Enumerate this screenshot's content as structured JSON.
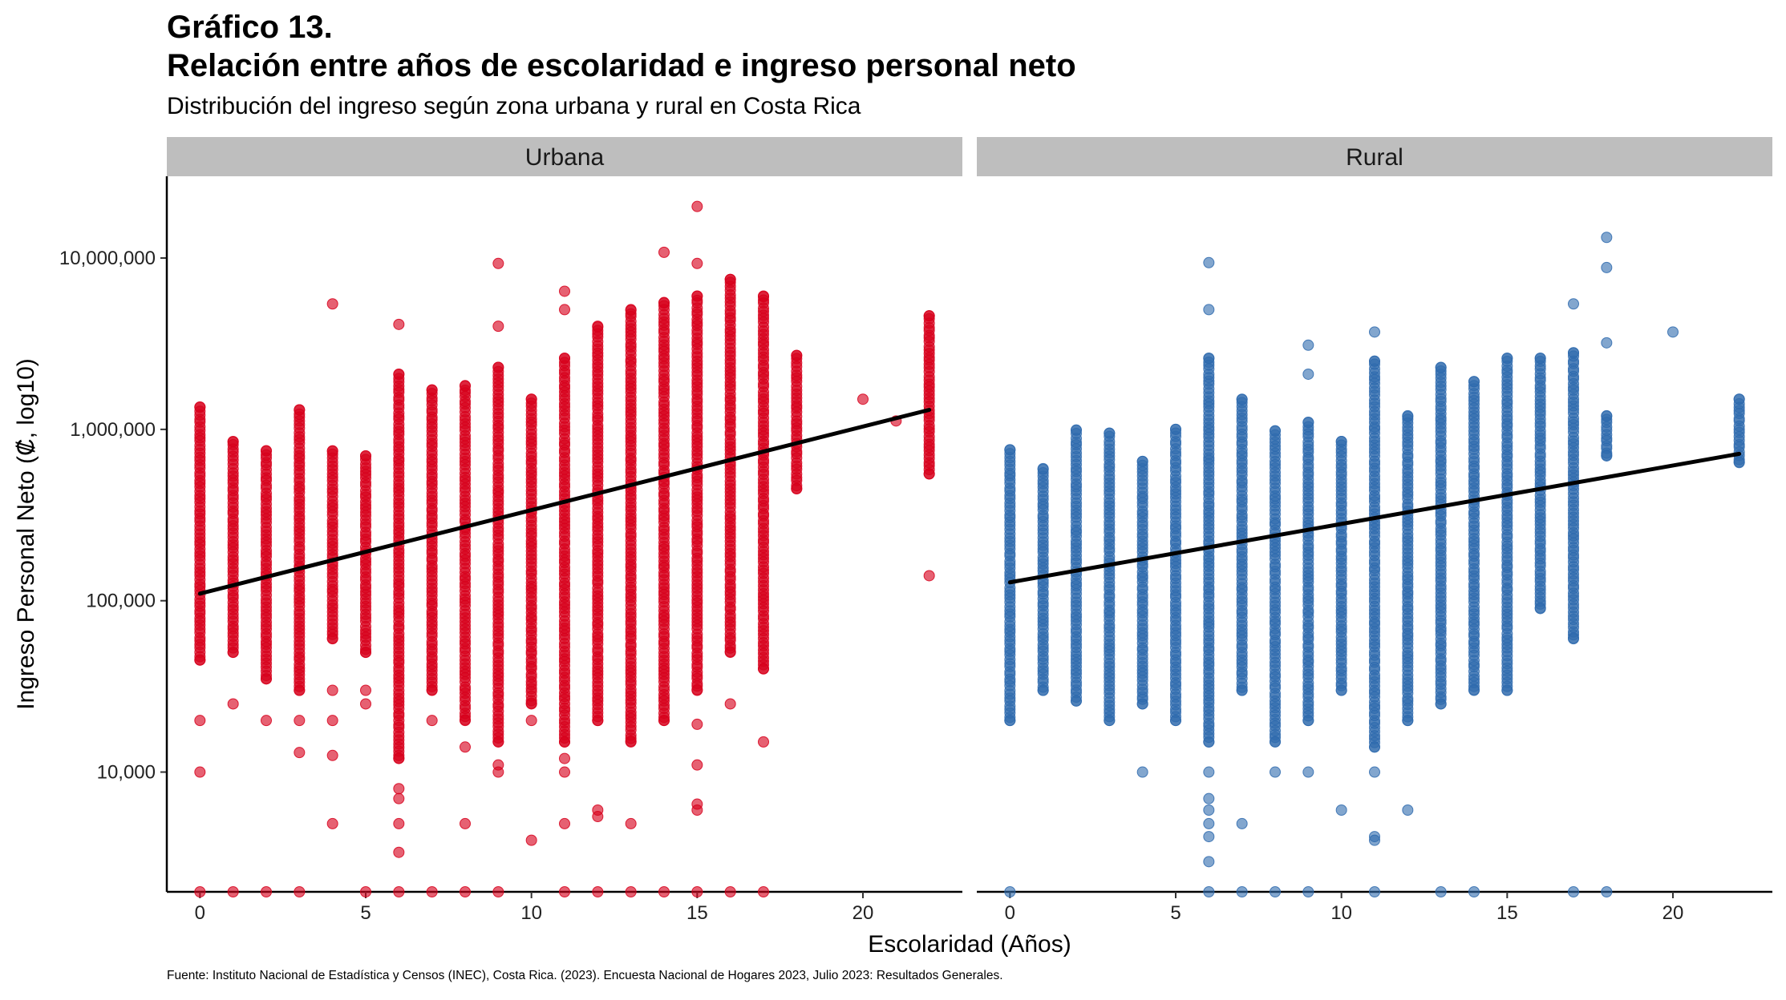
{
  "title_line1": "Gráfico 13.",
  "title_line2": "Relación entre años de escolaridad e ingreso personal neto",
  "subtitle": "Distribución del ingreso según zona urbana y rural en Costa Rica",
  "caption": "Fuente: Instituto Nacional de Estadística y Censos (INEC), Costa Rica. (2023). Encuesta Nacional de Hogares 2023, Julio 2023: Resultados Generales.",
  "colors": {
    "urbana": "#D7001C",
    "rural": "#2E6AAE",
    "strip": "#BEBEBE",
    "fit_line": "#000000"
  },
  "chart_data": {
    "type": "scatter",
    "title": "Relación entre años de escolaridad e ingreso personal neto",
    "subtitle": "Distribución del ingreso según zona urbana y rural en Costa Rica",
    "xlabel": "Escolaridad (Años)",
    "ylabel": "Ingreso Personal Neto (₡, log10)",
    "y_scale": "log10",
    "ylim": [
      2000,
      30000000
    ],
    "xlim": [
      -1,
      23
    ],
    "x_ticks": [
      0,
      5,
      10,
      15,
      20
    ],
    "x_tick_labels": [
      "0",
      "5",
      "10",
      "15",
      "20"
    ],
    "y_ticks": [
      10000,
      100000,
      1000000,
      10000000
    ],
    "y_tick_labels": [
      "10,000",
      "100,000",
      "1,000,000",
      "10,000,000"
    ],
    "grid": false,
    "legend": "none",
    "panels": [
      {
        "name": "Urbana",
        "trend_line": {
          "x": [
            0,
            22
          ],
          "y": [
            110000,
            1300000
          ]
        },
        "columns": [
          {
            "x": 0,
            "min": 45000,
            "max": 1350000
          },
          {
            "x": 1,
            "min": 50000,
            "max": 850000
          },
          {
            "x": 2,
            "min": 35000,
            "max": 750000
          },
          {
            "x": 3,
            "min": 30000,
            "max": 1300000
          },
          {
            "x": 4,
            "min": 60000,
            "max": 750000
          },
          {
            "x": 5,
            "min": 50000,
            "max": 700000
          },
          {
            "x": 6,
            "min": 12000,
            "max": 2100000
          },
          {
            "x": 7,
            "min": 30000,
            "max": 1700000
          },
          {
            "x": 8,
            "min": 20000,
            "max": 1800000
          },
          {
            "x": 9,
            "min": 15000,
            "max": 2300000
          },
          {
            "x": 10,
            "min": 25000,
            "max": 1500000
          },
          {
            "x": 11,
            "min": 15000,
            "max": 2600000
          },
          {
            "x": 12,
            "min": 20000,
            "max": 4000000
          },
          {
            "x": 13,
            "min": 15000,
            "max": 5000000
          },
          {
            "x": 14,
            "min": 20000,
            "max": 5500000
          },
          {
            "x": 15,
            "min": 30000,
            "max": 6000000
          },
          {
            "x": 16,
            "min": 50000,
            "max": 7500000
          },
          {
            "x": 17,
            "min": 40000,
            "max": 6000000
          },
          {
            "x": 18,
            "min": 450000,
            "max": 2700000
          },
          {
            "x": 22,
            "min": 550000,
            "max": 4600000
          }
        ],
        "outliers": [
          {
            "x": 0,
            "y": 10000
          },
          {
            "x": 0,
            "y": 20000
          },
          {
            "x": 0,
            "y": 2000
          },
          {
            "x": 1,
            "y": 25000
          },
          {
            "x": 1,
            "y": 2000
          },
          {
            "x": 2,
            "y": 20000
          },
          {
            "x": 2,
            "y": 2000
          },
          {
            "x": 3,
            "y": 20000
          },
          {
            "x": 3,
            "y": 13000
          },
          {
            "x": 3,
            "y": 2000
          },
          {
            "x": 4,
            "y": 5400000
          },
          {
            "x": 4,
            "y": 30000
          },
          {
            "x": 4,
            "y": 20000
          },
          {
            "x": 4,
            "y": 12500
          },
          {
            "x": 4,
            "y": 5000
          },
          {
            "x": 5,
            "y": 30000
          },
          {
            "x": 5,
            "y": 25000
          },
          {
            "x": 5,
            "y": 2000
          },
          {
            "x": 6,
            "y": 4100000
          },
          {
            "x": 6,
            "y": 8000
          },
          {
            "x": 6,
            "y": 7000
          },
          {
            "x": 6,
            "y": 5000
          },
          {
            "x": 6,
            "y": 3400
          },
          {
            "x": 6,
            "y": 2000
          },
          {
            "x": 7,
            "y": 20000
          },
          {
            "x": 7,
            "y": 2000
          },
          {
            "x": 8,
            "y": 5000
          },
          {
            "x": 8,
            "y": 14000
          },
          {
            "x": 8,
            "y": 2000
          },
          {
            "x": 9,
            "y": 9300000
          },
          {
            "x": 9,
            "y": 4000000
          },
          {
            "x": 9,
            "y": 10000
          },
          {
            "x": 9,
            "y": 11000
          },
          {
            "x": 9,
            "y": 2000
          },
          {
            "x": 10,
            "y": 4000
          },
          {
            "x": 10,
            "y": 20000
          },
          {
            "x": 11,
            "y": 6400000
          },
          {
            "x": 11,
            "y": 5000000
          },
          {
            "x": 11,
            "y": 10000
          },
          {
            "x": 11,
            "y": 5000
          },
          {
            "x": 11,
            "y": 12000
          },
          {
            "x": 11,
            "y": 2000
          },
          {
            "x": 12,
            "y": 6000
          },
          {
            "x": 12,
            "y": 5500
          },
          {
            "x": 12,
            "y": 2000
          },
          {
            "x": 13,
            "y": 5000
          },
          {
            "x": 13,
            "y": 2000
          },
          {
            "x": 14,
            "y": 10800000
          },
          {
            "x": 14,
            "y": 2000
          },
          {
            "x": 15,
            "y": 20000000
          },
          {
            "x": 15,
            "y": 9300000
          },
          {
            "x": 15,
            "y": 19000
          },
          {
            "x": 15,
            "y": 11000
          },
          {
            "x": 15,
            "y": 6500
          },
          {
            "x": 15,
            "y": 6000
          },
          {
            "x": 15,
            "y": 2000
          },
          {
            "x": 16,
            "y": 25000
          },
          {
            "x": 16,
            "y": 2000
          },
          {
            "x": 17,
            "y": 15000
          },
          {
            "x": 17,
            "y": 2000
          },
          {
            "x": 20,
            "y": 1500000
          },
          {
            "x": 21,
            "y": 1120000
          },
          {
            "x": 22,
            "y": 140000
          }
        ]
      },
      {
        "name": "Rural",
        "trend_line": {
          "x": [
            0,
            22
          ],
          "y": [
            128000,
            720000
          ]
        },
        "columns": [
          {
            "x": 0,
            "min": 20000,
            "max": 760000
          },
          {
            "x": 1,
            "min": 30000,
            "max": 590000
          },
          {
            "x": 2,
            "min": 26000,
            "max": 990000
          },
          {
            "x": 3,
            "min": 20000,
            "max": 950000
          },
          {
            "x": 4,
            "min": 25000,
            "max": 650000
          },
          {
            "x": 5,
            "min": 20000,
            "max": 1000000
          },
          {
            "x": 6,
            "min": 15000,
            "max": 2600000
          },
          {
            "x": 7,
            "min": 30000,
            "max": 1500000
          },
          {
            "x": 8,
            "min": 15000,
            "max": 980000
          },
          {
            "x": 9,
            "min": 20000,
            "max": 1100000
          },
          {
            "x": 10,
            "min": 30000,
            "max": 850000
          },
          {
            "x": 11,
            "min": 14000,
            "max": 2500000
          },
          {
            "x": 12,
            "min": 20000,
            "max": 1200000
          },
          {
            "x": 13,
            "min": 25000,
            "max": 2300000
          },
          {
            "x": 14,
            "min": 30000,
            "max": 1900000
          },
          {
            "x": 15,
            "min": 30000,
            "max": 2600000
          },
          {
            "x": 16,
            "min": 90000,
            "max": 2600000
          },
          {
            "x": 17,
            "min": 60000,
            "max": 2800000
          },
          {
            "x": 18,
            "min": 700000,
            "max": 1200000
          },
          {
            "x": 22,
            "min": 640000,
            "max": 1500000
          }
        ],
        "outliers": [
          {
            "x": 0,
            "y": 2000
          },
          {
            "x": 4,
            "y": 10000
          },
          {
            "x": 6,
            "y": 9400000
          },
          {
            "x": 6,
            "y": 5000000
          },
          {
            "x": 6,
            "y": 10000
          },
          {
            "x": 6,
            "y": 7000
          },
          {
            "x": 6,
            "y": 6000
          },
          {
            "x": 6,
            "y": 5000
          },
          {
            "x": 6,
            "y": 4200
          },
          {
            "x": 6,
            "y": 3000
          },
          {
            "x": 6,
            "y": 2000
          },
          {
            "x": 7,
            "y": 5000
          },
          {
            "x": 7,
            "y": 2000
          },
          {
            "x": 8,
            "y": 10000
          },
          {
            "x": 8,
            "y": 2000
          },
          {
            "x": 9,
            "y": 3100000
          },
          {
            "x": 9,
            "y": 2100000
          },
          {
            "x": 9,
            "y": 10000
          },
          {
            "x": 9,
            "y": 2000
          },
          {
            "x": 10,
            "y": 6000
          },
          {
            "x": 11,
            "y": 3700000
          },
          {
            "x": 11,
            "y": 10000
          },
          {
            "x": 11,
            "y": 4200
          },
          {
            "x": 11,
            "y": 4000
          },
          {
            "x": 11,
            "y": 2000
          },
          {
            "x": 12,
            "y": 6000
          },
          {
            "x": 13,
            "y": 2000
          },
          {
            "x": 14,
            "y": 2000
          },
          {
            "x": 17,
            "y": 5400000
          },
          {
            "x": 17,
            "y": 2000
          },
          {
            "x": 18,
            "y": 13200000
          },
          {
            "x": 18,
            "y": 8800000
          },
          {
            "x": 18,
            "y": 3200000
          },
          {
            "x": 18,
            "y": 2000
          },
          {
            "x": 20,
            "y": 3700000
          }
        ]
      }
    ]
  }
}
